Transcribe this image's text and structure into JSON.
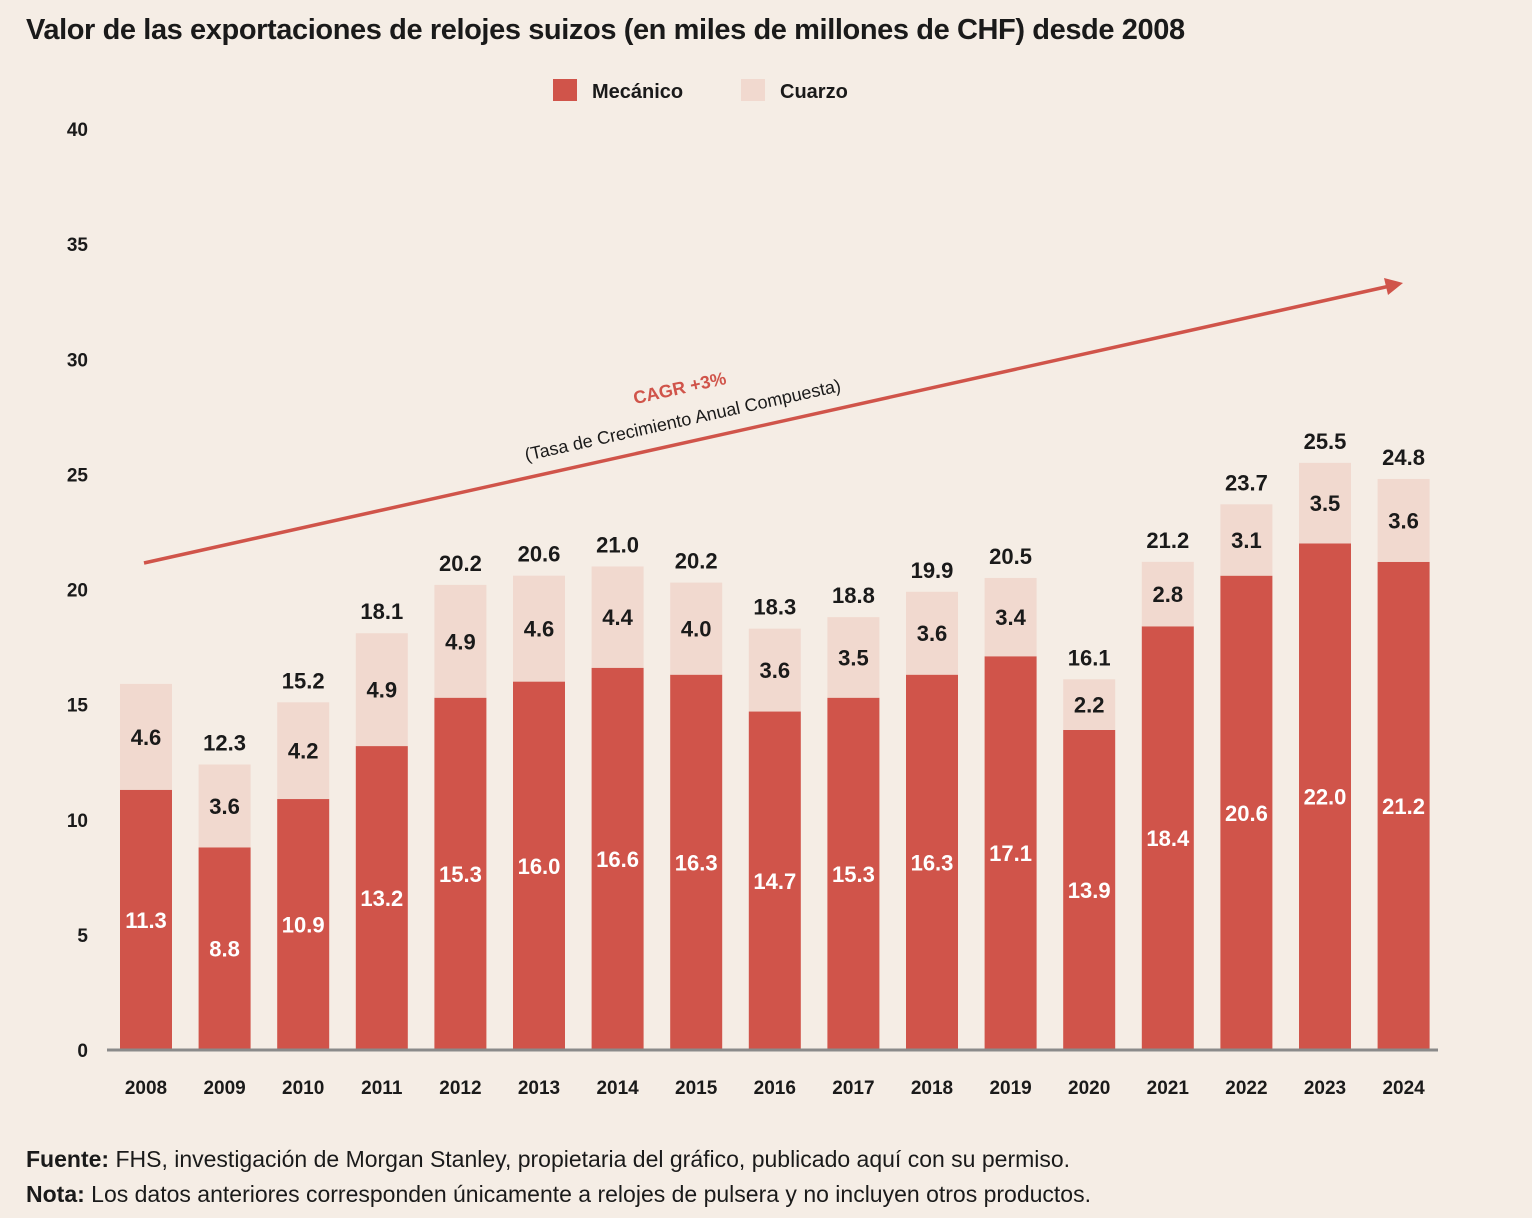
{
  "title": "Valor de las exportaciones de relojes suizos (en miles de millones de CHF) desde 2008",
  "colors": {
    "mecanico": "#d0544a",
    "cuarzo": "#f1d9cf",
    "background": "#f5ede5",
    "arrow": "#d0544a",
    "axis": "#8a8a8a"
  },
  "annotation": {
    "cagr": "CAGR +3%",
    "cagr_desc": "(Tasa de Crecimiento Anual Compuesta)"
  },
  "footer": {
    "source_label": "Fuente:",
    "source_text": " FHS, investigación de Morgan Stanley, propietaria del gráfico, publicado aquí con su permiso.",
    "note_label": "Nota:",
    "note_text": " Los datos anteriores corresponden únicamente a relojes de pulsera y no incluyen otros productos."
  },
  "chart_data": {
    "type": "bar",
    "stacked": true,
    "categories": [
      "2008",
      "2009",
      "2010",
      "2011",
      "2012",
      "2013",
      "2014",
      "2015",
      "2016",
      "2017",
      "2018",
      "2019",
      "2020",
      "2021",
      "2022",
      "2023",
      "2024"
    ],
    "series": [
      {
        "name": "Mecánico",
        "values": [
          11.3,
          8.8,
          10.9,
          13.2,
          15.3,
          16.0,
          16.6,
          16.3,
          14.7,
          15.3,
          16.3,
          17.1,
          13.9,
          18.4,
          20.6,
          22.0,
          21.2
        ],
        "labels": [
          "11.3",
          "8.8",
          "10.9",
          "13.2",
          "15.3",
          "16.0",
          "16.6",
          "16.3",
          "14.7",
          "15.3",
          "16.3",
          "17.1",
          "13.9",
          "18.4",
          "20.6",
          "22.0",
          "21.2"
        ]
      },
      {
        "name": "Cuarzo",
        "values": [
          4.6,
          3.6,
          4.2,
          4.9,
          4.9,
          4.6,
          4.4,
          4.0,
          3.6,
          3.5,
          3.6,
          3.4,
          2.2,
          2.8,
          3.1,
          3.5,
          3.6
        ],
        "labels": [
          "4.6",
          "3.6",
          "4.2",
          "4.9",
          "4.9",
          "4.6",
          "4.4",
          "4.0",
          "3.6",
          "3.5",
          "3.6",
          "3.4",
          "2.2",
          "2.8",
          "3.1",
          "3.5",
          "3.6"
        ]
      }
    ],
    "totals": [
      "",
      "12.3",
      "15.2",
      "18.1",
      "20.2",
      "20.6",
      "21.0",
      "20.2",
      "18.3",
      "18.8",
      "19.9",
      "20.5",
      "16.1",
      "21.2",
      "23.7",
      "25.5",
      "24.8"
    ],
    "ylim": [
      0,
      40
    ],
    "yticks": [
      "0",
      "5",
      "10",
      "15",
      "20",
      "25",
      "30",
      "35",
      "40"
    ],
    "legend_position": "top-center",
    "grid": false
  }
}
